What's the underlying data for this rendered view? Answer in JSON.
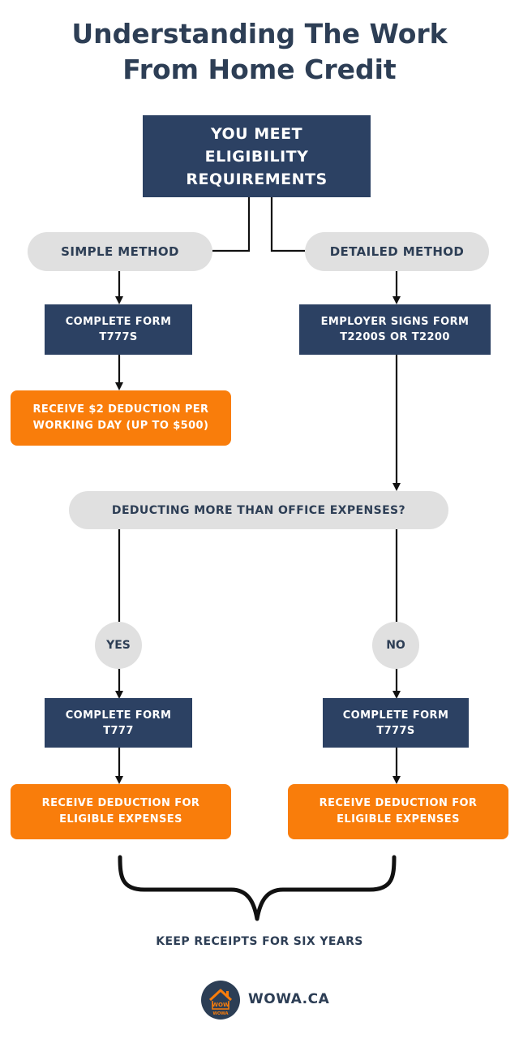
{
  "title": {
    "line1": "Understanding The Work",
    "line2": "From Home Credit"
  },
  "top": {
    "line1": "YOU MEET",
    "line2": "ELIGIBILITY",
    "line3": "REQUIREMENTS"
  },
  "simple": {
    "method": "SIMPLE METHOD",
    "form_line1": "COMPLETE FORM",
    "form_line2": "T777S",
    "result_line1": "RECEIVE $2 DEDUCTION PER",
    "result_line2": "WORKING DAY (UP TO $500)"
  },
  "detailed": {
    "method": "DETAILED METHOD",
    "form_line1": "EMPLOYER SIGNS FORM",
    "form_line2": "T2200S OR T2200"
  },
  "question": "DEDUCTING MORE THAN OFFICE EXPENSES?",
  "yes": {
    "label": "YES",
    "form_line1": "COMPLETE FORM",
    "form_line2": "T777",
    "result_line1": "RECEIVE DEDUCTION FOR",
    "result_line2": "ELIGIBLE EXPENSES"
  },
  "no": {
    "label": "NO",
    "form_line1": "COMPLETE FORM",
    "form_line2": "T777S",
    "result_line1": "RECEIVE DEDUCTION FOR",
    "result_line2": "ELIGIBLE EXPENSES"
  },
  "footer": {
    "note": "KEEP RECEIPTS FOR SIX YEARS",
    "logo_text": "WOWA",
    "brand": "WOWA.CA"
  },
  "colors": {
    "navy": "#2c4163",
    "orange": "#f97d0b",
    "pill_gray": "#e0e0e0",
    "text_dark": "#2d3e55"
  }
}
